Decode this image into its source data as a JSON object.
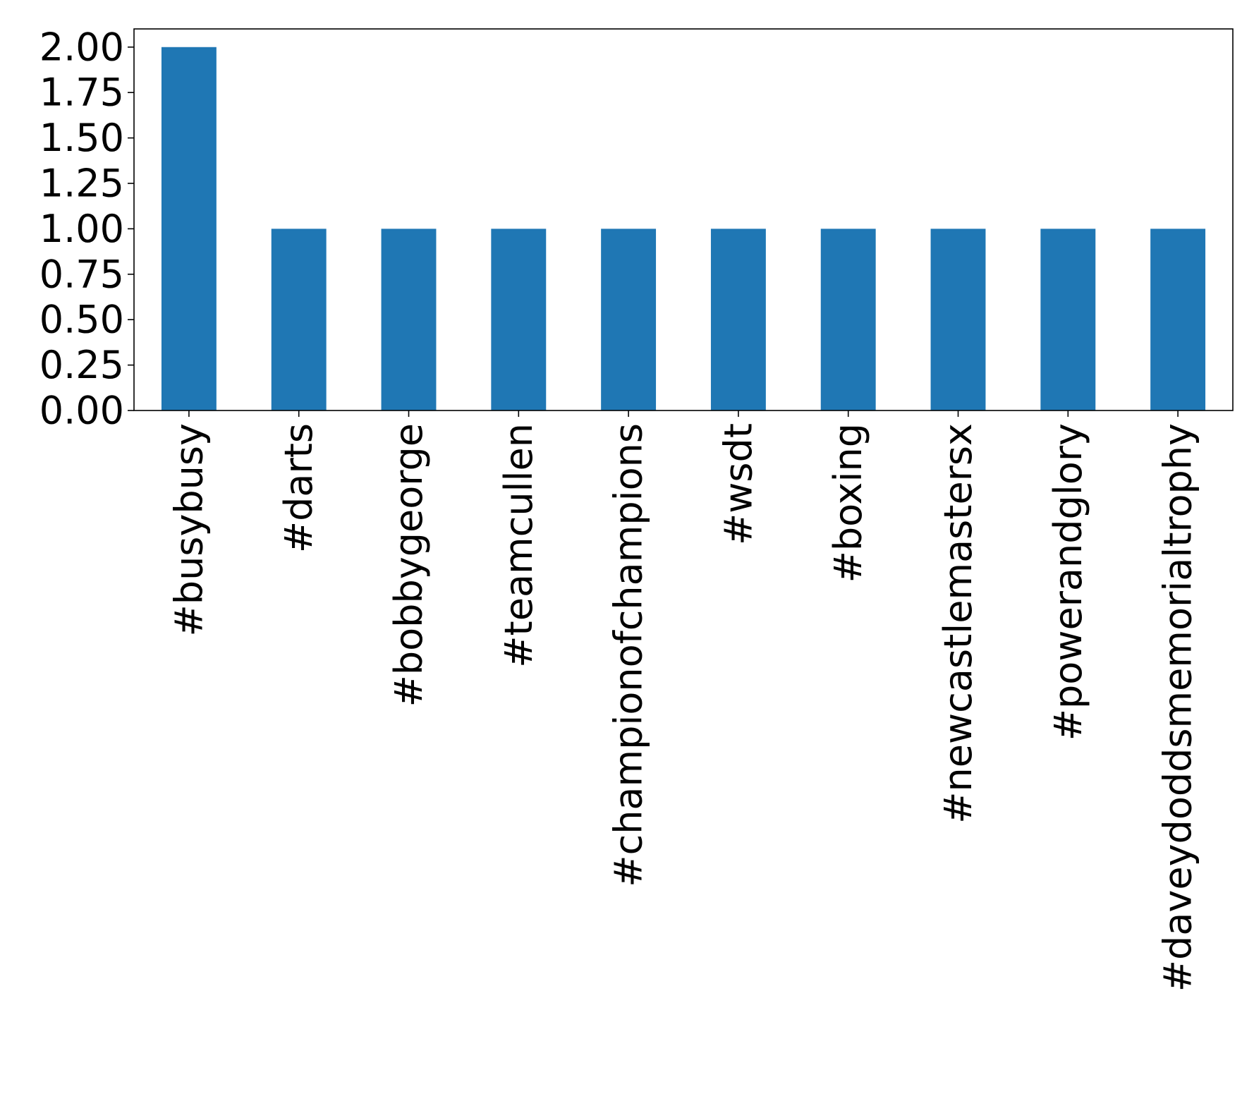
{
  "chart_data": {
    "type": "bar",
    "title": "",
    "xlabel": "",
    "ylabel": "",
    "categories": [
      "#busybusy",
      "#darts",
      "#bobbygeorge",
      "#teamcullen",
      "#championofchampions",
      "#wsdt",
      "#boxing",
      "#newcastlemastersx",
      "#powerandglory",
      "#daveydoddsmemorialtrophy"
    ],
    "values": [
      2,
      1,
      1,
      1,
      1,
      1,
      1,
      1,
      1,
      1
    ],
    "ylim": [
      0,
      2.1
    ],
    "yticks": [
      0.0,
      0.25,
      0.5,
      0.75,
      1.0,
      1.25,
      1.5,
      1.75,
      2.0
    ],
    "ytick_labels": [
      "0.00",
      "0.25",
      "0.50",
      "0.75",
      "1.00",
      "1.25",
      "1.50",
      "1.75",
      "2.00"
    ],
    "grid": false,
    "legend": "none",
    "bar_color": "#1f77b4"
  }
}
